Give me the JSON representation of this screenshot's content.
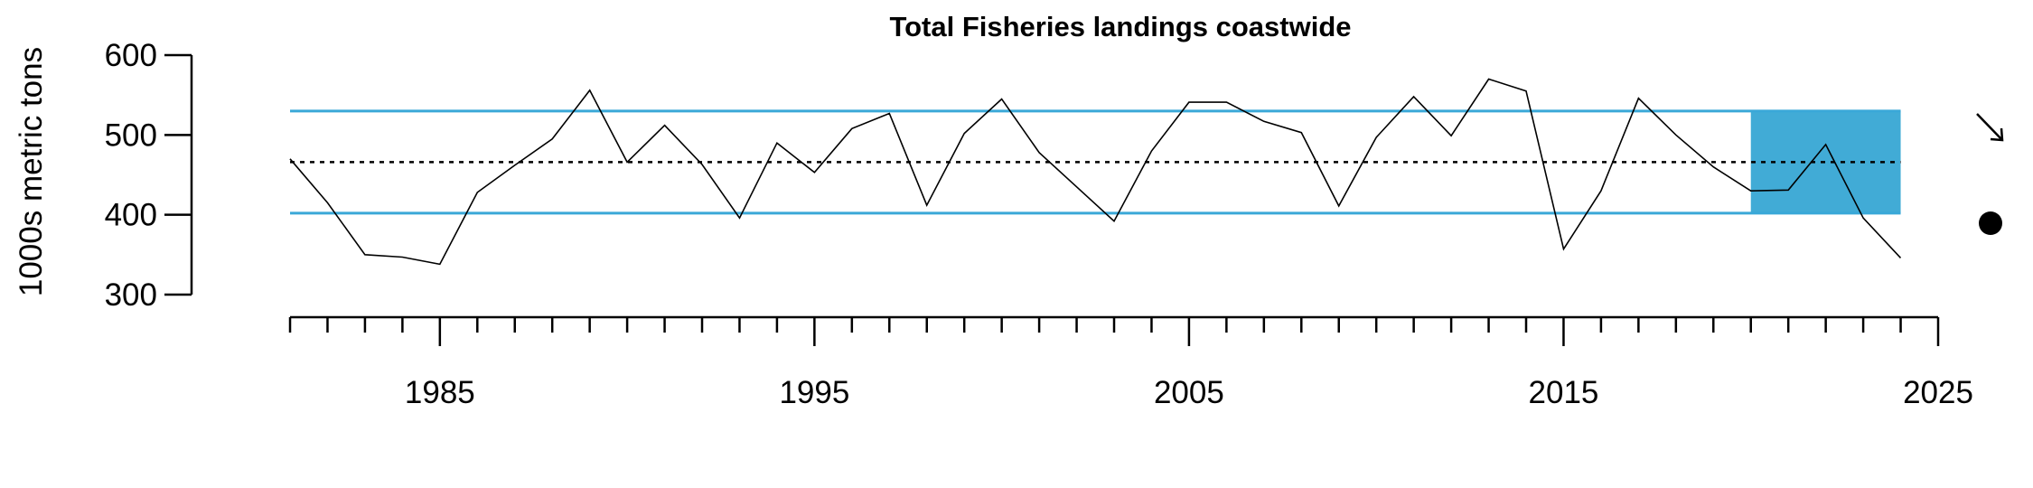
{
  "chart_data": {
    "type": "line",
    "title": "Total Fisheries landings coastwide",
    "ylabel": "1000s metric tons",
    "xlabel": "",
    "xlim": [
      1980.3,
      2025
    ],
    "ylim": [
      300,
      600
    ],
    "x_ticks": [
      1985,
      1995,
      2005,
      2015,
      2025
    ],
    "x_minor_ticks": [
      1981,
      1982,
      1983,
      1984,
      1985,
      1986,
      1987,
      1988,
      1989,
      1990,
      1991,
      1992,
      1993,
      1994,
      1995,
      1996,
      1997,
      1998,
      1999,
      2000,
      2001,
      2002,
      2003,
      2004,
      2005,
      2006,
      2007,
      2008,
      2009,
      2010,
      2011,
      2012,
      2013,
      2014,
      2015,
      2016,
      2017,
      2018,
      2019,
      2020,
      2021,
      2022,
      2023,
      2024,
      2025
    ],
    "y_ticks": [
      300,
      400,
      500,
      600
    ],
    "grid": false,
    "series": [
      {
        "x": [
          1981,
          1982,
          1983,
          1984,
          1985,
          1986,
          1987,
          1988,
          1989,
          1990,
          1991,
          1992,
          1993,
          1994,
          1995,
          1996,
          1997,
          1998,
          1999,
          2000,
          2001,
          2002,
          2003,
          2004,
          2005,
          2006,
          2007,
          2008,
          2009,
          2010,
          2011,
          2012,
          2013,
          2014,
          2015,
          2016,
          2017,
          2018,
          2019,
          2020,
          2021,
          2022,
          2023,
          2024
        ],
        "values": [
          470,
          415,
          350,
          347,
          338,
          428,
          462,
          495,
          556,
          466,
          512,
          463,
          396,
          490,
          453,
          508,
          527,
          412,
          502,
          545,
          478,
          435,
          392,
          480,
          541,
          541,
          517,
          503,
          411,
          497,
          548,
          499,
          570,
          555,
          357,
          430,
          546,
          500,
          460,
          430,
          431,
          488,
          396,
          346
        ]
      }
    ],
    "reference_lines": {
      "mean": 466,
      "upper_sd": 530,
      "lower_sd": 402
    },
    "highlight_window": {
      "x_start": 2020,
      "x_end": 2024,
      "y_low": 402,
      "y_high": 530
    },
    "trend_indicator": "arrow-down-right",
    "mean_indicator": "filled-circle",
    "colors": {
      "line": "#000000",
      "reference": "#3aa8d8",
      "highlight_fill": "#41abd6",
      "mean_line": "#000000"
    }
  }
}
